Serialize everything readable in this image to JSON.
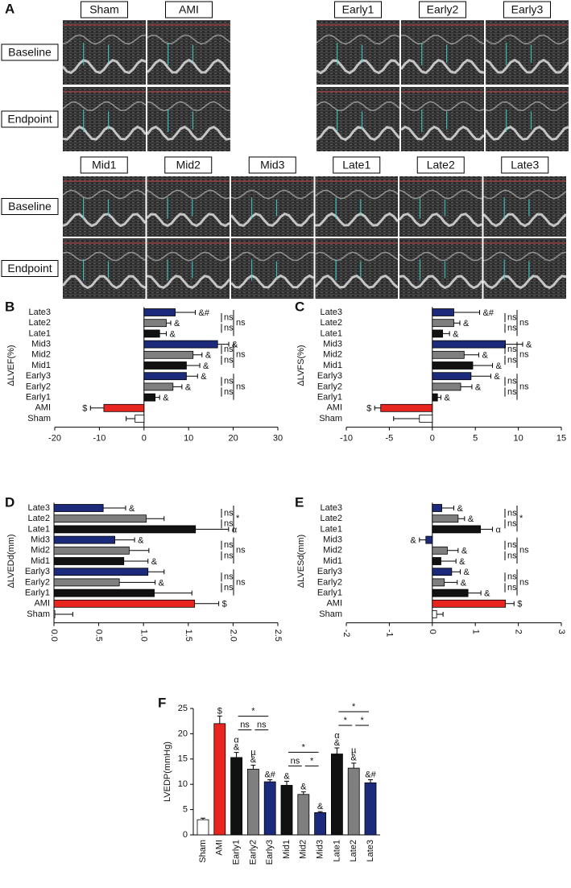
{
  "panel_a": {
    "label": "A",
    "rows": [
      "Baseline",
      "Endpoint"
    ],
    "blocks": [
      {
        "columns": [
          "Sham",
          "AMI"
        ]
      },
      {
        "columns": [
          "Early1",
          "Early2",
          "Early3"
        ]
      },
      {
        "columns": [
          "Mid1",
          "Mid2",
          "Mid3",
          "Late1",
          "Late2",
          "Late3"
        ]
      }
    ]
  },
  "chart_data": [
    {
      "type": "bar",
      "orientation": "horizontal",
      "panel": "B",
      "xlabel": "ΔLVEF(%)",
      "categories": [
        "Late3",
        "Late2",
        "Late1",
        "Mid3",
        "Mid2",
        "Mid1",
        "Early3",
        "Early2",
        "Early1",
        "AMI",
        "Sham"
      ],
      "values": [
        7,
        5,
        3.5,
        16.5,
        11,
        9.5,
        9.5,
        6.5,
        2.5,
        -9,
        -2
      ],
      "errors": [
        4.5,
        1,
        1.5,
        2.5,
        2,
        3,
        2.5,
        2,
        1,
        3,
        2
      ],
      "annotations": [
        "&#",
        "&",
        "&",
        "&",
        "&",
        "&",
        "&",
        "&",
        "&",
        "$",
        null
      ],
      "colors": [
        "#1b2a7b",
        "#7f7f7f",
        "#111111",
        "#1b2a7b",
        "#7f7f7f",
        "#111111",
        "#1b2a7b",
        "#7f7f7f",
        "#111111",
        "#e8251e",
        "#ffffff"
      ],
      "xlim": [
        -20,
        30
      ],
      "xticks": [
        -20,
        -10,
        0,
        10,
        20,
        30
      ],
      "comparisons": [
        {
          "between": [
            "Late3",
            "Late2"
          ],
          "label": "ns"
        },
        {
          "between": [
            "Late2",
            "Late1"
          ],
          "label": "ns"
        },
        {
          "between": [
            "Late3",
            "Late1"
          ],
          "label": "ns"
        },
        {
          "between": [
            "Mid3",
            "Mid2"
          ],
          "label": "ns"
        },
        {
          "between": [
            "Mid2",
            "Mid1"
          ],
          "label": "ns"
        },
        {
          "between": [
            "Mid3",
            "Mid1"
          ],
          "label": "ns"
        },
        {
          "between": [
            "Early3",
            "Early2"
          ],
          "label": "ns"
        },
        {
          "between": [
            "Early2",
            "Early1"
          ],
          "label": "ns"
        },
        {
          "between": [
            "Early3",
            "Early1"
          ],
          "label": "ns"
        }
      ]
    },
    {
      "type": "bar",
      "orientation": "horizontal",
      "panel": "C",
      "xlabel": "ΔLVFS(%)",
      "categories": [
        "Late3",
        "Late2",
        "Late1",
        "Mid3",
        "Mid2",
        "Mid1",
        "Early3",
        "Early2",
        "Early1",
        "AMI",
        "Sham"
      ],
      "values": [
        2.5,
        2.5,
        1.2,
        8.5,
        3.7,
        4.7,
        4.5,
        3.3,
        0.6,
        -6,
        -1.5
      ],
      "errors": [
        3,
        0.7,
        0.8,
        2,
        1.7,
        2.3,
        2.3,
        1.3,
        0.4,
        0.7,
        3
      ],
      "annotations": [
        "&#",
        "&",
        "&",
        "&",
        "&",
        "&",
        "&",
        "&",
        "&",
        "$",
        null
      ],
      "colors": [
        "#1b2a7b",
        "#7f7f7f",
        "#111111",
        "#1b2a7b",
        "#7f7f7f",
        "#111111",
        "#1b2a7b",
        "#7f7f7f",
        "#111111",
        "#e8251e",
        "#ffffff"
      ],
      "xlim": [
        -10,
        15
      ],
      "xticks": [
        -10,
        -5,
        0,
        5,
        10,
        15
      ],
      "comparisons": [
        {
          "between": [
            "Late3",
            "Late2"
          ],
          "label": "ns"
        },
        {
          "between": [
            "Late2",
            "Late1"
          ],
          "label": "ns"
        },
        {
          "between": [
            "Late3",
            "Late1"
          ],
          "label": "ns"
        },
        {
          "between": [
            "Mid3",
            "Mid2"
          ],
          "label": "ns"
        },
        {
          "between": [
            "Mid2",
            "Mid1"
          ],
          "label": "ns"
        },
        {
          "between": [
            "Mid3",
            "Mid1"
          ],
          "label": "ns"
        },
        {
          "between": [
            "Early3",
            "Early2"
          ],
          "label": "ns"
        },
        {
          "between": [
            "Early2",
            "Early1"
          ],
          "label": "ns"
        },
        {
          "between": [
            "Early3",
            "Early1"
          ],
          "label": "ns"
        }
      ]
    },
    {
      "type": "bar",
      "orientation": "horizontal",
      "panel": "D",
      "xlabel": "ΔLVEDd(mm)",
      "categories": [
        "Late3",
        "Late2",
        "Late1",
        "Mid3",
        "Mid2",
        "Mid1",
        "Early3",
        "Early2",
        "Early1",
        "AMI",
        "Sham"
      ],
      "values": [
        0.55,
        1.03,
        1.58,
        0.68,
        0.84,
        0.78,
        1.05,
        0.73,
        1.12,
        1.57,
        0.01
      ],
      "errors": [
        0.25,
        0.2,
        0.37,
        0.22,
        0.22,
        0.27,
        0.18,
        0.4,
        0.42,
        0.27,
        0.2
      ],
      "annotations": [
        "&",
        null,
        "α",
        "&",
        null,
        "&",
        null,
        "&",
        null,
        "$",
        null
      ],
      "colors": [
        "#1b2a7b",
        "#7f7f7f",
        "#111111",
        "#1b2a7b",
        "#7f7f7f",
        "#111111",
        "#1b2a7b",
        "#7f7f7f",
        "#111111",
        "#e8251e",
        "#ffffff"
      ],
      "xlim": [
        0,
        2.5
      ],
      "xticks": [
        {
          "value": 0,
          "label": "0.0"
        },
        0.5,
        {
          "value": 1,
          "label": "1.0"
        },
        1.5,
        {
          "value": 2,
          "label": "2.0"
        },
        2.5
      ],
      "comparisons": [
        {
          "between": [
            "Late3",
            "Late2"
          ],
          "label": "ns"
        },
        {
          "between": [
            "Late2",
            "Late1"
          ],
          "label": "ns"
        },
        {
          "between": [
            "Late3",
            "Late1"
          ],
          "label": "*"
        },
        {
          "between": [
            "Mid3",
            "Mid2"
          ],
          "label": "ns"
        },
        {
          "between": [
            "Mid2",
            "Mid1"
          ],
          "label": "ns"
        },
        {
          "between": [
            "Mid3",
            "Mid1"
          ],
          "label": "ns"
        },
        {
          "between": [
            "Early3",
            "Early2"
          ],
          "label": "ns"
        },
        {
          "between": [
            "Early2",
            "Early1"
          ],
          "label": "ns"
        },
        {
          "between": [
            "Early3",
            "Early1"
          ],
          "label": "ns"
        }
      ]
    },
    {
      "type": "bar",
      "orientation": "horizontal",
      "panel": "E",
      "xlabel": "ΔLVESd(mm)",
      "categories": [
        "Late3",
        "Late2",
        "Late1",
        "Mid3",
        "Mid2",
        "Mid1",
        "Early3",
        "Early2",
        "Early1",
        "AMI",
        "Sham"
      ],
      "values": [
        0.22,
        0.6,
        1.12,
        -0.15,
        0.35,
        0.2,
        0.45,
        0.28,
        0.83,
        1.7,
        0.1
      ],
      "errors": [
        0.28,
        0.15,
        0.28,
        0.15,
        0.25,
        0.35,
        0.2,
        0.3,
        0.3,
        0.2,
        0.15
      ],
      "annotations": [
        "&",
        "&",
        "α",
        "&",
        "&",
        "&",
        "&",
        "&",
        "&",
        "$",
        null
      ],
      "colors": [
        "#1b2a7b",
        "#7f7f7f",
        "#111111",
        "#1b2a7b",
        "#7f7f7f",
        "#111111",
        "#1b2a7b",
        "#7f7f7f",
        "#111111",
        "#e8251e",
        "#ffffff"
      ],
      "xlim": [
        -2,
        3
      ],
      "xticks": [
        -2,
        -1,
        0,
        1,
        2,
        3
      ],
      "comparisons": [
        {
          "between": [
            "Late3",
            "Late2"
          ],
          "label": "ns"
        },
        {
          "between": [
            "Late2",
            "Late1"
          ],
          "label": "ns"
        },
        {
          "between": [
            "Late3",
            "Late1"
          ],
          "label": "*"
        },
        {
          "between": [
            "Mid3",
            "Mid2"
          ],
          "label": "ns"
        },
        {
          "between": [
            "Mid2",
            "Mid1"
          ],
          "label": "ns"
        },
        {
          "between": [
            "Mid3",
            "Mid1"
          ],
          "label": "ns"
        },
        {
          "between": [
            "Early3",
            "Early2"
          ],
          "label": "ns"
        },
        {
          "between": [
            "Early2",
            "Early1"
          ],
          "label": "ns"
        },
        {
          "between": [
            "Early3",
            "Early1"
          ],
          "label": "ns"
        }
      ]
    },
    {
      "type": "bar",
      "orientation": "vertical",
      "panel": "F",
      "ylabel": "LVEDP(mmHg)",
      "categories": [
        "Sham",
        "AMI",
        "Early1",
        "Early2",
        "Early3",
        "Mid1",
        "Mid2",
        "Mid3",
        "Late1",
        "Late2",
        "Late3"
      ],
      "values": [
        3,
        22,
        15.3,
        13,
        10.5,
        9.8,
        8,
        4.4,
        16,
        13.2,
        10.3
      ],
      "errors": [
        0.3,
        1.5,
        1,
        0.8,
        0.4,
        0.8,
        0.5,
        0.2,
        1.2,
        1,
        0.6
      ],
      "annotations": [
        null,
        [
          "$"
        ],
        [
          "&",
          "α"
        ],
        [
          "&",
          "µ"
        ],
        [
          "&#"
        ],
        [
          "&"
        ],
        [
          "&"
        ],
        [
          "&"
        ],
        [
          "&",
          "α"
        ],
        [
          "&",
          "µ"
        ],
        [
          "&#"
        ]
      ],
      "colors": [
        "#ffffff",
        "#e8251e",
        "#111111",
        "#7f7f7f",
        "#1b2a7b",
        "#111111",
        "#7f7f7f",
        "#1b2a7b",
        "#111111",
        "#7f7f7f",
        "#1b2a7b"
      ],
      "ylim": [
        0,
        25
      ],
      "yticks": [
        0,
        5,
        10,
        15,
        20,
        25
      ],
      "comparisons": [
        {
          "between": [
            "Early1",
            "Early2"
          ],
          "label": "ns"
        },
        {
          "between": [
            "Early2",
            "Early3"
          ],
          "label": "ns"
        },
        {
          "between": [
            "Early1",
            "Early3"
          ],
          "label": "*"
        },
        {
          "between": [
            "Mid1",
            "Mid2"
          ],
          "label": "ns"
        },
        {
          "between": [
            "Mid2",
            "Mid3"
          ],
          "label": "*"
        },
        {
          "between": [
            "Mid1",
            "Mid3"
          ],
          "label": "*"
        },
        {
          "between": [
            "Late1",
            "Late2"
          ],
          "label": "*"
        },
        {
          "between": [
            "Late2",
            "Late3"
          ],
          "label": "*"
        },
        {
          "between": [
            "Late1",
            "Late3"
          ],
          "label": "*"
        }
      ]
    }
  ]
}
